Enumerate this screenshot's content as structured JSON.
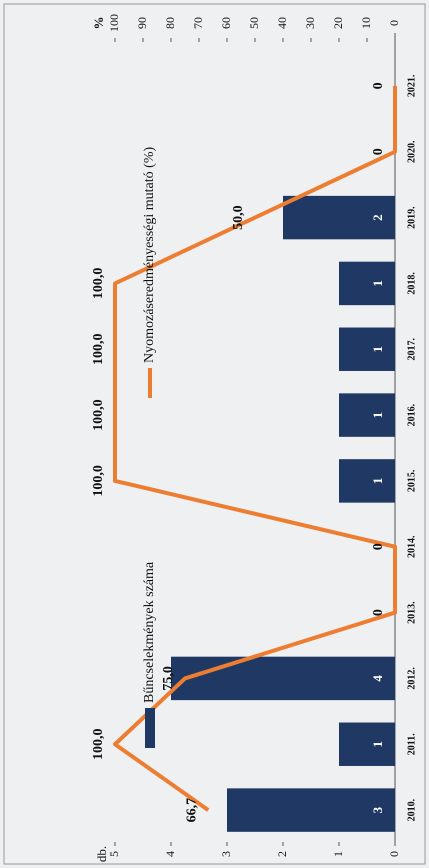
{
  "chart_data": {
    "type": "bar",
    "categories": [
      "2010.",
      "2011.",
      "2012.",
      "2013.",
      "2014.",
      "2015.",
      "2016.",
      "2017.",
      "2018.",
      "2019.",
      "2020.",
      "2021."
    ],
    "series": [
      {
        "name": "Bűncselekmények száma",
        "type": "bar",
        "color": "#1f3864",
        "values": [
          3,
          1,
          4,
          0,
          0,
          1,
          1,
          1,
          1,
          2,
          0,
          0
        ]
      },
      {
        "name": "Nyomozáseredményességi mutató (%)",
        "type": "line",
        "axis": "y2",
        "color": "#ed7d31",
        "values": [
          66.7,
          100,
          75,
          0,
          0,
          100,
          100,
          100,
          100,
          50,
          0,
          0
        ],
        "value_labels": [
          "66,7",
          "100,0",
          "75,0",
          "0",
          "0",
          "100,0",
          "100,0",
          "100,0",
          "100,0",
          "50,0",
          "0",
          "0"
        ]
      }
    ],
    "ylabel": "db.",
    "y2label": "%",
    "ylim": [
      0,
      5
    ],
    "yticks": [
      0,
      1,
      2,
      3,
      4,
      5
    ],
    "y2lim": [
      0,
      100
    ],
    "y2ticks": [
      0,
      10,
      20,
      30,
      40,
      50,
      60,
      70,
      80,
      90,
      100
    ],
    "legend": "top"
  }
}
